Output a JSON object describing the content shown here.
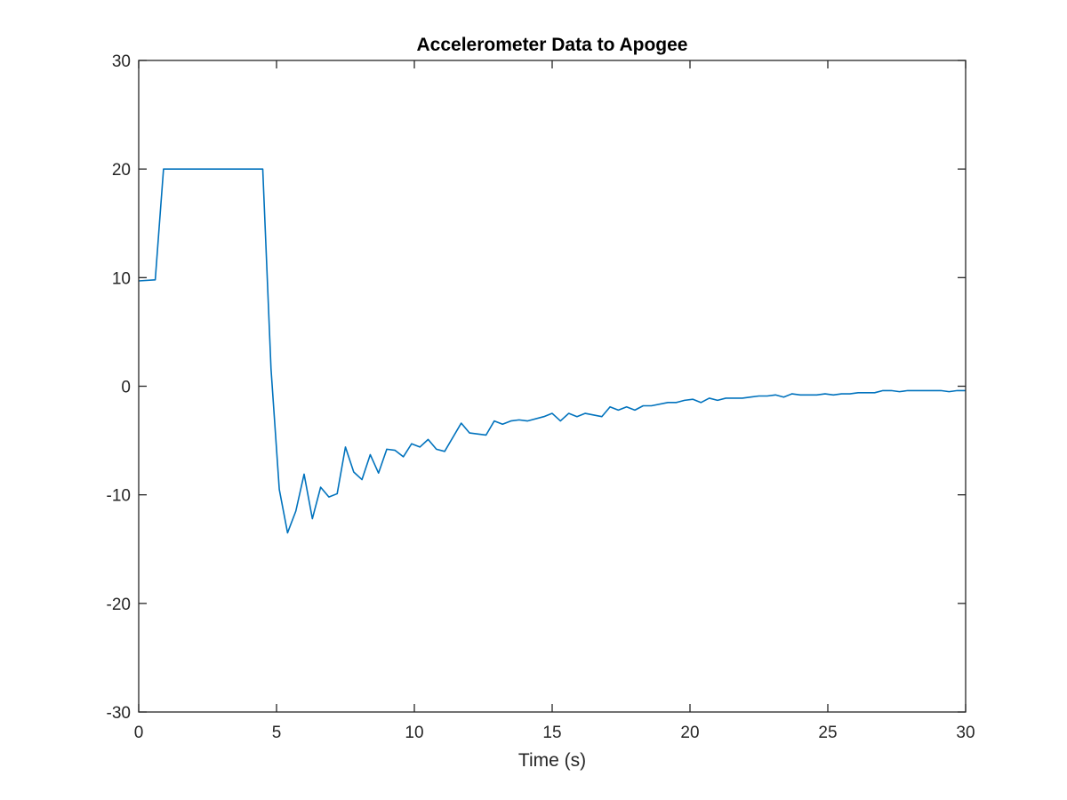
{
  "chart_data": {
    "type": "line",
    "title": "Accelerometer Data to Apogee",
    "xlabel": "Time (s)",
    "ylabel": "",
    "xlim": [
      0,
      30
    ],
    "ylim": [
      -30,
      30
    ],
    "x_ticks": [
      0,
      5,
      10,
      15,
      20,
      25,
      30
    ],
    "y_ticks": [
      -30,
      -20,
      -10,
      0,
      10,
      20,
      30
    ],
    "grid": false,
    "box": true,
    "series": [
      {
        "color": "#0072BD",
        "points": [
          [
            0,
            9.7
          ],
          [
            0.6,
            9.8
          ],
          [
            0.9,
            20
          ],
          [
            4.5,
            20
          ],
          [
            4.8,
            1.6
          ],
          [
            5.1,
            -9.5
          ],
          [
            5.4,
            -13.5
          ],
          [
            5.7,
            -11.5
          ],
          [
            6.0,
            -8.1
          ],
          [
            6.3,
            -12.2
          ],
          [
            6.6,
            -9.3
          ],
          [
            6.9,
            -10.2
          ],
          [
            7.2,
            -9.9
          ],
          [
            7.5,
            -5.6
          ],
          [
            7.8,
            -7.9
          ],
          [
            8.1,
            -8.6
          ],
          [
            8.4,
            -6.3
          ],
          [
            8.7,
            -8.0
          ],
          [
            9.0,
            -5.8
          ],
          [
            9.3,
            -5.9
          ],
          [
            9.6,
            -6.5
          ],
          [
            9.9,
            -5.3
          ],
          [
            10.2,
            -5.6
          ],
          [
            10.5,
            -4.9
          ],
          [
            10.8,
            -5.8
          ],
          [
            11.1,
            -6.0
          ],
          [
            11.7,
            -3.4
          ],
          [
            12.0,
            -4.3
          ],
          [
            12.6,
            -4.5
          ],
          [
            12.9,
            -3.2
          ],
          [
            13.2,
            -3.5
          ],
          [
            13.5,
            -3.2
          ],
          [
            13.8,
            -3.1
          ],
          [
            14.1,
            -3.2
          ],
          [
            14.7,
            -2.8
          ],
          [
            15.0,
            -2.5
          ],
          [
            15.3,
            -3.2
          ],
          [
            15.6,
            -2.5
          ],
          [
            15.9,
            -2.8
          ],
          [
            16.2,
            -2.5
          ],
          [
            16.8,
            -2.8
          ],
          [
            17.1,
            -1.9
          ],
          [
            17.4,
            -2.2
          ],
          [
            17.7,
            -1.9
          ],
          [
            18.0,
            -2.2
          ],
          [
            18.3,
            -1.8
          ],
          [
            18.6,
            -1.8
          ],
          [
            19.2,
            -1.5
          ],
          [
            19.5,
            -1.5
          ],
          [
            19.8,
            -1.3
          ],
          [
            20.1,
            -1.2
          ],
          [
            20.4,
            -1.5
          ],
          [
            20.7,
            -1.1
          ],
          [
            21.0,
            -1.3
          ],
          [
            21.3,
            -1.1
          ],
          [
            21.6,
            -1.1
          ],
          [
            21.9,
            -1.1
          ],
          [
            22.2,
            -1.0
          ],
          [
            22.5,
            -0.9
          ],
          [
            22.8,
            -0.9
          ],
          [
            23.1,
            -0.8
          ],
          [
            23.4,
            -1.0
          ],
          [
            23.7,
            -0.7
          ],
          [
            24.0,
            -0.8
          ],
          [
            24.6,
            -0.8
          ],
          [
            24.9,
            -0.7
          ],
          [
            25.2,
            -0.8
          ],
          [
            25.5,
            -0.7
          ],
          [
            25.8,
            -0.7
          ],
          [
            26.1,
            -0.6
          ],
          [
            26.7,
            -0.6
          ],
          [
            27.0,
            -0.4
          ],
          [
            27.3,
            -0.4
          ],
          [
            27.6,
            -0.5
          ],
          [
            27.9,
            -0.4
          ],
          [
            28.2,
            -0.4
          ],
          [
            28.5,
            -0.4
          ],
          [
            28.8,
            -0.4
          ],
          [
            29.1,
            -0.4
          ],
          [
            29.4,
            -0.5
          ],
          [
            29.7,
            -0.4
          ],
          [
            30.0,
            -0.4
          ]
        ]
      }
    ]
  }
}
